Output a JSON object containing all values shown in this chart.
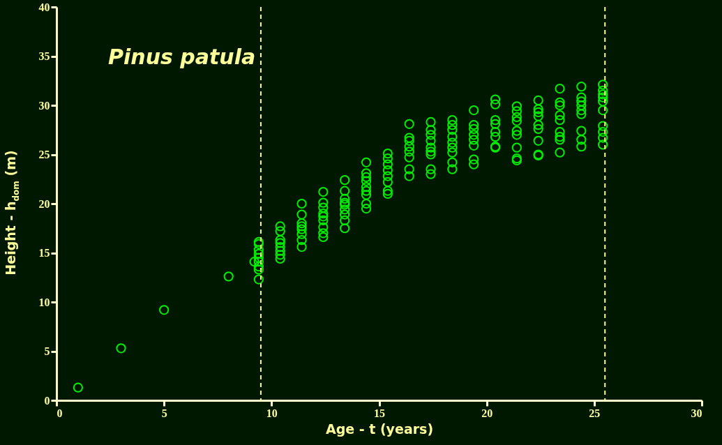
{
  "chart_data": {
    "type": "scatter",
    "title": "Pinus patula",
    "xlabel": "Age - t  (years)",
    "ylabel": "Height - h$_{dom}$  (m)",
    "xlim": [
      0,
      30
    ],
    "xticks": [
      0,
      5,
      10,
      15,
      20,
      25,
      30
    ],
    "ylim": [
      0,
      40
    ],
    "yticks": [
      0,
      5,
      10,
      15,
      20,
      25,
      30,
      35,
      40
    ],
    "grid": false,
    "marker": "circle",
    "ref_lines": [
      {
        "axis": "x",
        "value": 9.5,
        "color": "#ffff80",
        "line_style": "dashed"
      },
      {
        "axis": "x",
        "value": 25.5,
        "color": "#ffff80",
        "line_style": "dashed"
      }
    ],
    "series": [
      {
        "color": "#00ee00",
        "x": [
          1,
          3,
          5,
          8,
          9.2,
          9.4,
          9.4,
          9.4,
          9.4,
          9.4,
          9.4,
          9.4,
          9.4,
          9.4,
          10.4,
          10.4,
          10.4,
          10.4,
          10.4,
          10.4,
          10.4,
          10.4,
          11.4,
          11.4,
          11.4,
          11.4,
          11.4,
          11.4,
          11.4,
          11.4,
          12.4,
          12.4,
          12.4,
          12.4,
          12.4,
          12.4,
          12.4,
          12.4,
          12.4,
          13.4,
          13.4,
          13.4,
          13.4,
          13.4,
          13.4,
          13.4,
          13.4,
          13.4,
          14.4,
          14.4,
          14.4,
          14.4,
          14.4,
          14.4,
          14.4,
          14.4,
          14.4,
          15.4,
          15.4,
          15.4,
          15.4,
          15.4,
          15.4,
          15.4,
          15.4,
          16.4,
          16.4,
          16.4,
          16.4,
          16.4,
          16.4,
          16.4,
          16.4,
          17.4,
          17.4,
          17.4,
          17.4,
          17.4,
          17.4,
          17.4,
          17.4,
          17.4,
          18.4,
          18.4,
          18.4,
          18.4,
          18.4,
          18.4,
          18.4,
          18.4,
          18.4,
          19.4,
          19.4,
          19.4,
          19.4,
          19.4,
          19.4,
          19.4,
          19.4,
          20.4,
          20.4,
          20.4,
          20.4,
          20.4,
          20.4,
          20.4,
          20.4,
          21.4,
          21.4,
          21.4,
          21.4,
          21.4,
          21.4,
          21.4,
          21.4,
          21.4,
          22.4,
          22.4,
          22.4,
          22.4,
          22.4,
          22.4,
          22.4,
          22.4,
          22.4,
          23.4,
          23.4,
          23.4,
          23.4,
          23.4,
          23.4,
          23.4,
          23.4,
          23.4,
          24.4,
          24.4,
          24.4,
          24.4,
          24.4,
          24.4,
          24.4,
          24.4,
          24.4,
          25.4,
          25.4,
          25.4,
          25.4,
          25.4,
          25.4,
          25.4,
          25.4,
          25.4,
          25.4
        ],
        "values": [
          1.3,
          5.3,
          9.2,
          12.6,
          14.1,
          16.1,
          15.9,
          15.3,
          14.9,
          14.5,
          14.1,
          13.6,
          13.3,
          12.3,
          17.7,
          17.2,
          16.3,
          16.0,
          15.6,
          15.2,
          14.8,
          14.4,
          20.0,
          18.9,
          18.0,
          17.7,
          17.4,
          16.9,
          16.3,
          15.6,
          21.2,
          20.1,
          19.6,
          19.0,
          18.7,
          18.3,
          17.6,
          17.0,
          16.6,
          22.4,
          21.3,
          20.5,
          20.1,
          19.9,
          19.4,
          18.9,
          18.3,
          17.5,
          24.2,
          23.1,
          22.7,
          22.3,
          21.7,
          21.3,
          20.9,
          20.0,
          19.5,
          25.1,
          24.6,
          24.0,
          23.4,
          22.8,
          22.2,
          21.3,
          21.0,
          28.1,
          26.7,
          26.4,
          25.8,
          25.3,
          24.7,
          23.5,
          22.8,
          28.3,
          27.5,
          27.0,
          26.4,
          25.7,
          25.3,
          25.0,
          23.5,
          23.0,
          28.5,
          28.0,
          27.5,
          26.8,
          26.2,
          25.7,
          25.2,
          24.2,
          23.5,
          29.5,
          28.0,
          27.6,
          27.0,
          26.5,
          25.9,
          24.5,
          24.0,
          30.6,
          30.1,
          28.5,
          28.1,
          27.3,
          26.8,
          25.8,
          25.7,
          29.9,
          29.4,
          28.8,
          28.4,
          27.4,
          27.0,
          25.7,
          24.6,
          24.4,
          30.5,
          29.6,
          29.3,
          28.9,
          28.0,
          27.6,
          26.4,
          25.0,
          24.9,
          31.7,
          30.3,
          30.0,
          29.0,
          28.5,
          27.3,
          26.8,
          26.5,
          25.2,
          31.9,
          30.8,
          30.4,
          30.0,
          29.5,
          29.1,
          27.4,
          26.5,
          25.8,
          32.1,
          31.5,
          31.1,
          30.8,
          30.4,
          29.5,
          27.9,
          27.3,
          26.7,
          26.0
        ]
      }
    ]
  }
}
